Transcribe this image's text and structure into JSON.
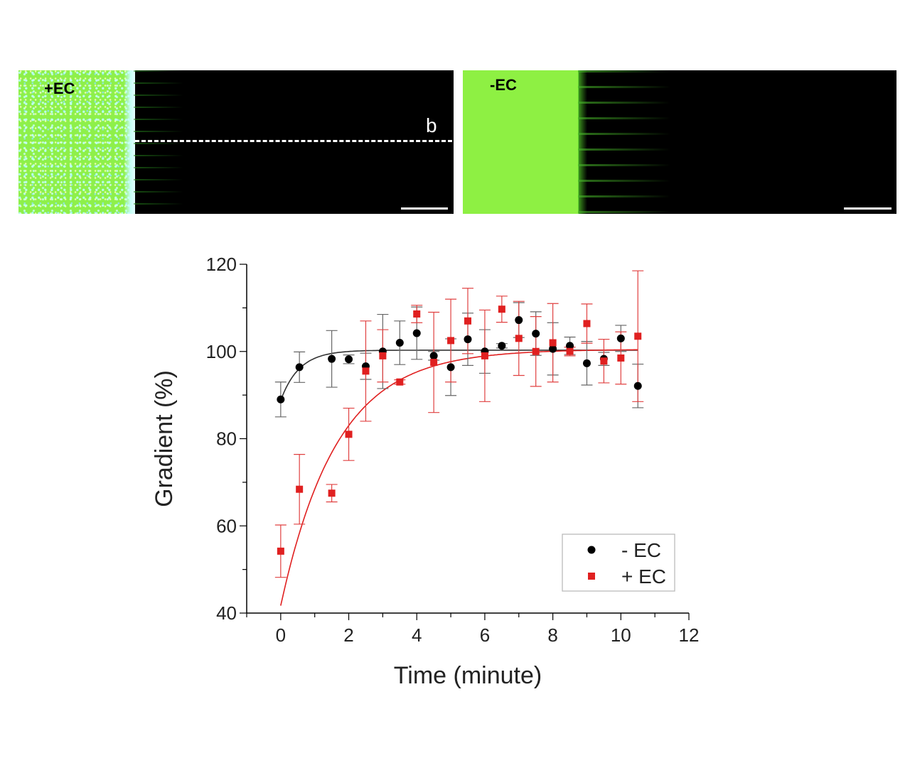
{
  "panels": {
    "left": {
      "label": "+EC",
      "line_label": "b"
    },
    "right": {
      "label": "-EC"
    }
  },
  "colors": {
    "series_minus_ec": "#000000",
    "series_plus_ec": "#e02020",
    "fit_minus_ec": "#333333",
    "fit_plus_ec": "#e02020",
    "error_minus_ec": "#666666",
    "error_plus_ec": "#e04040"
  },
  "chart_data": {
    "type": "scatter",
    "xlabel": "Time (minute)",
    "ylabel": "Gradient (%)",
    "xlim": [
      -1,
      12
    ],
    "ylim": [
      40,
      120
    ],
    "xticks": [
      0,
      2,
      4,
      6,
      8,
      10,
      12
    ],
    "yticks": [
      40,
      60,
      80,
      100,
      120
    ],
    "legend_position": "lower-right",
    "series": [
      {
        "name": "- EC",
        "marker": "circle",
        "x": [
          0,
          0.55,
          1.5,
          2,
          2.5,
          3,
          3.5,
          4,
          4.5,
          5,
          5.5,
          6,
          6.5,
          7,
          7.5,
          8,
          8.5,
          9,
          9.5,
          10,
          10.5
        ],
        "y": [
          89,
          96.4,
          98.3,
          98.2,
          96.6,
          100,
          102,
          104.2,
          99,
          96.4,
          102.8,
          100,
          101.3,
          107.2,
          104.1,
          100.6,
          101.3,
          97.3,
          98.3,
          103,
          92.1
        ],
        "err": [
          4,
          3.5,
          6.5,
          1,
          3,
          8.5,
          5,
          6,
          1,
          6.5,
          6,
          5,
          0.5,
          4,
          5,
          6,
          2,
          5,
          1.5,
          3,
          5
        ]
      },
      {
        "name": "+ EC",
        "marker": "square",
        "x": [
          0,
          0.55,
          1.5,
          2,
          2.5,
          3,
          3.5,
          4,
          4.5,
          5,
          5.5,
          6,
          6.5,
          7,
          7.5,
          8,
          8.5,
          9,
          9.5,
          10,
          10.5
        ],
        "y": [
          54.2,
          68.4,
          67.5,
          81,
          95.5,
          99,
          93,
          108.6,
          97.5,
          102.5,
          107,
          99,
          109.7,
          103,
          100,
          102,
          100,
          106.4,
          97.8,
          98.5,
          103.5
        ],
        "err": [
          6,
          8,
          2,
          6,
          11.5,
          6,
          0.5,
          2,
          11.5,
          9.5,
          7.5,
          10.5,
          3,
          8.5,
          8,
          9,
          1,
          4.5,
          5,
          6,
          15
        ]
      }
    ],
    "fits": [
      {
        "name": "- EC fit",
        "model": "exponential",
        "a": 100.3,
        "b": 11.5,
        "tau": 0.55,
        "x_range": [
          0,
          10.5
        ]
      },
      {
        "name": "+ EC fit",
        "model": "exponential",
        "a": 100.5,
        "b": 58.8,
        "tau": 1.65,
        "x_range": [
          0,
          10.5
        ]
      }
    ]
  }
}
